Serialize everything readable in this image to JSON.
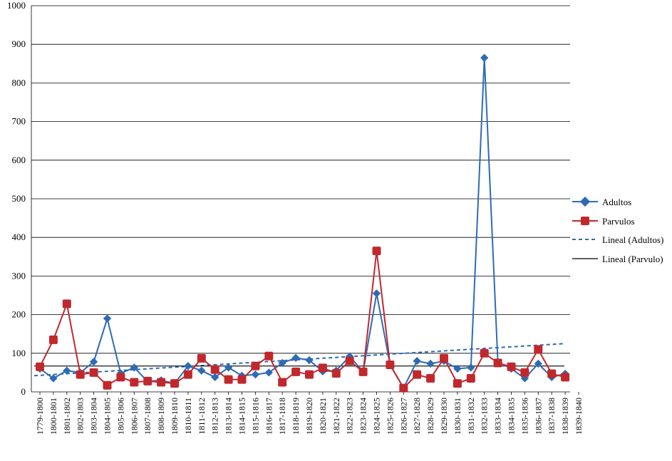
{
  "chart_data": {
    "type": "line",
    "title": "",
    "xlabel": "",
    "ylabel": "",
    "ylim": [
      0,
      1000
    ],
    "yticks": [
      0,
      100,
      200,
      300,
      400,
      500,
      600,
      700,
      800,
      900,
      1000
    ],
    "grid": true,
    "legend_position": "right",
    "categories": [
      "1779-1800",
      "1800-1801",
      "1801-1802",
      "1802-1803",
      "1803-1804",
      "1804-1805",
      "1805-1806",
      "1806-1807",
      "1807-1808",
      "1808-1809",
      "1809-1810",
      "1810-1811",
      "1811-1812",
      "1812-1813",
      "1813-1814",
      "1814-1815",
      "1815-1816",
      "1816-1817",
      "1817-1818",
      "1818-1819",
      "1819-1820",
      "1820-1821",
      "1821-1822",
      "1822-1823",
      "1823-1824",
      "1824-1825",
      "1825-1826",
      "1826-1827",
      "1827-1828",
      "1828-1829",
      "1829-1830",
      "1830-1831",
      "1831-1832",
      "1832-1833",
      "1833-1834",
      "1834-1835",
      "1835-1836",
      "1836-1837",
      "1837-1838",
      "1838-1839",
      "1839-1840"
    ],
    "series": [
      {
        "name": "Adultos",
        "color": "#2E6BB5",
        "marker": "diamond",
        "values": [
          60,
          35,
          55,
          50,
          78,
          190,
          48,
          63,
          27,
          30,
          22,
          67,
          55,
          38,
          63,
          42,
          45,
          50,
          75,
          88,
          82,
          53,
          55,
          92,
          52,
          255,
          70,
          10,
          80,
          73,
          80,
          60,
          63,
          865,
          78,
          60,
          35,
          73,
          38,
          47,
          null
        ]
      },
      {
        "name": "Parvulos",
        "color": "#C0282D",
        "marker": "square",
        "values": [
          65,
          135,
          228,
          45,
          50,
          17,
          38,
          25,
          28,
          25,
          22,
          45,
          87,
          58,
          32,
          32,
          67,
          93,
          25,
          52,
          45,
          62,
          48,
          80,
          52,
          365,
          70,
          10,
          45,
          35,
          87,
          22,
          35,
          100,
          75,
          65,
          50,
          110,
          47,
          38,
          null
        ]
      }
    ],
    "trendlines": [
      {
        "name": "Lineal (Adultos)",
        "color": "#2E6BB5",
        "style": "dashed",
        "start": 42,
        "end": 125
      },
      {
        "name": "Lineal (Parvulo)",
        "color": "#000000",
        "style": "solid",
        "start": 67,
        "end": 67
      }
    ]
  },
  "legend": {
    "items": [
      {
        "label": "Adultos"
      },
      {
        "label": "Parvulos"
      },
      {
        "label": "Lineal (Adultos)"
      },
      {
        "label": "Lineal (Parvulo)"
      }
    ]
  }
}
